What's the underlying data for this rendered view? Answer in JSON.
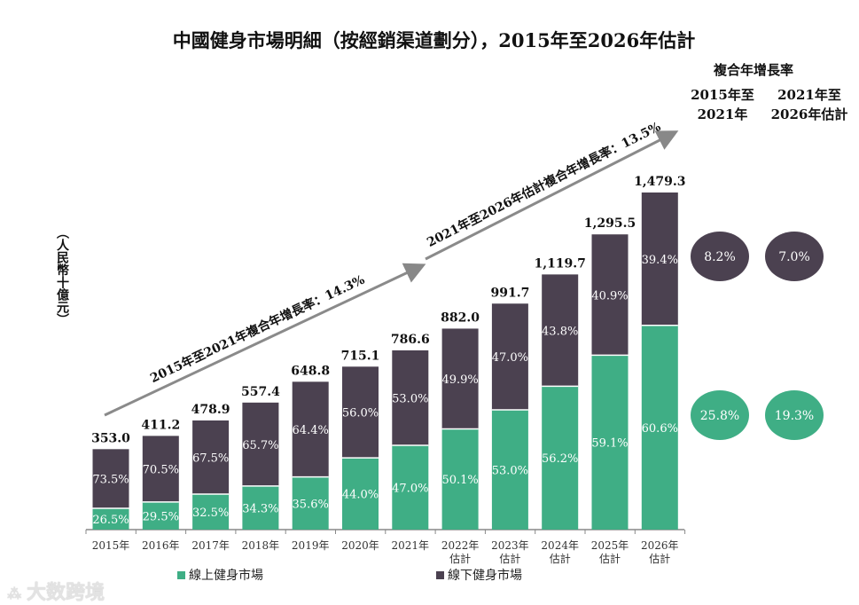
{
  "chart_data": {
    "type": "bar",
    "stacked": true,
    "title": "中國健身市場明細（按經銷渠道劃分），2015年至2026年估計",
    "ylabel": "（人民幣十億元）",
    "categories": [
      "2015年",
      "2016年",
      "2017年",
      "2018年",
      "2019年",
      "2020年",
      "2021年",
      "2022年\n估計",
      "2023年\n估計",
      "2024年\n估計",
      "2025年\n估計",
      "2026年\n估計"
    ],
    "totals": [
      353.0,
      411.2,
      478.9,
      557.4,
      648.8,
      715.1,
      786.6,
      882.0,
      991.7,
      1119.7,
      1295.5,
      1479.3
    ],
    "total_labels": [
      "353.0",
      "411.2",
      "478.9",
      "557.4",
      "648.8",
      "715.1",
      "786.6",
      "882.0",
      "991.7",
      "1,119.7",
      "1,295.5",
      "1,479.3"
    ],
    "series": [
      {
        "name": "線上健身市場",
        "color": "#3fae85",
        "share_labels": [
          "26.5%",
          "29.5%",
          "32.5%",
          "34.3%",
          "35.6%",
          "44.0%",
          "47.0%",
          "50.1%",
          "53.0%",
          "56.2%",
          "59.1%",
          "60.6%"
        ]
      },
      {
        "name": "線下健身市場",
        "color": "#4b4150",
        "share_labels": [
          "73.5%",
          "70.5%",
          "67.5%",
          "65.7%",
          "64.4%",
          "56.0%",
          "53.0%",
          "49.9%",
          "47.0%",
          "43.8%",
          "40.9%",
          "39.4%"
        ]
      }
    ],
    "annotations": [
      "2015年至2021年複合年增長率：14.3%",
      "2021年至2026年估計複合年增長率：13.5%"
    ],
    "cagr": {
      "header": "複合年增長率",
      "col1": [
        "2015年至",
        "2021年"
      ],
      "col2": [
        "2021年至",
        "2026年估計"
      ],
      "offline": [
        "8.2%",
        "7.0%"
      ],
      "online": [
        "25.8%",
        "19.3%"
      ]
    },
    "ylim": [
      0,
      1500
    ],
    "legend_position": "bottom"
  },
  "watermark": "大数跨境"
}
